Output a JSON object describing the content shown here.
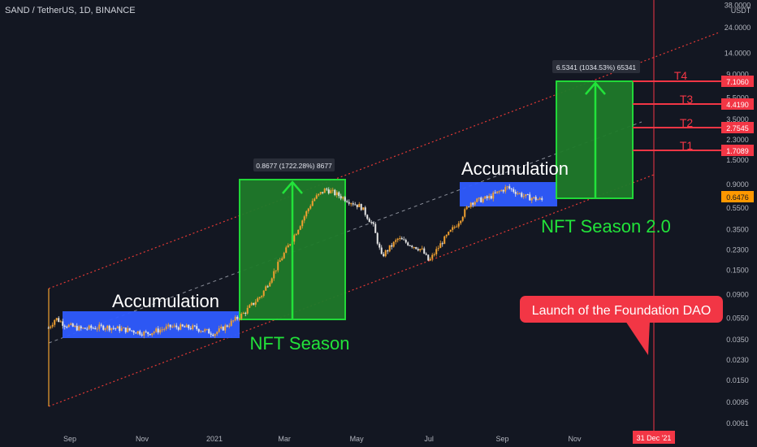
{
  "header": {
    "symbol": "SAND / TetherUS, 1D, BINANCE"
  },
  "colors": {
    "background": "#131722",
    "up": "#f0a030",
    "down": "#e6e6e6",
    "channel": "#e53935",
    "box_green": "#1f7a2a",
    "box_green_border": "#22e33a",
    "box_blue": "#2e5bff",
    "label_red": "#f23645",
    "current_price": "#ff9800",
    "event_line": "#f23645"
  },
  "chart_data": {
    "type": "candlestick",
    "scale": "log",
    "currency_label": "USDT",
    "y_ticks": [
      "38.0000",
      "24.0000",
      "14.0000",
      "9.0000",
      "5.5000",
      "3.5000",
      "2.3000",
      "1.5000",
      "0.9000",
      "0.5500",
      "0.3500",
      "0.2300",
      "0.1500",
      "0.0900",
      "0.0550",
      "0.0350",
      "0.0230",
      "0.0150",
      "0.0095",
      "0.0061"
    ],
    "x_ticks": [
      "Sep",
      "Nov",
      "2021",
      "Mar",
      "May",
      "Jul",
      "Sep",
      "Nov"
    ],
    "event_date_label": "31 Dec '21",
    "current_price": "0.6476",
    "price_path": [
      [
        "2020-08-14",
        0.045
      ],
      [
        "2020-08-20",
        0.055
      ],
      [
        "2020-08-28",
        0.048
      ],
      [
        "2020-09-10",
        0.044
      ],
      [
        "2020-10-01",
        0.046
      ],
      [
        "2020-10-20",
        0.043
      ],
      [
        "2020-11-05",
        0.04
      ],
      [
        "2020-11-25",
        0.046
      ],
      [
        "2020-12-15",
        0.045
      ],
      [
        "2021-01-01",
        0.04
      ],
      [
        "2021-01-10",
        0.046
      ],
      [
        "2021-01-25",
        0.06
      ],
      [
        "2021-02-10",
        0.09
      ],
      [
        "2021-02-25",
        0.18
      ],
      [
        "2021-03-10",
        0.32
      ],
      [
        "2021-03-25",
        0.65
      ],
      [
        "2021-04-05",
        0.82
      ],
      [
        "2021-04-20",
        0.68
      ],
      [
        "2021-05-05",
        0.56
      ],
      [
        "2021-05-15",
        0.38
      ],
      [
        "2021-05-22",
        0.2
      ],
      [
        "2021-06-05",
        0.29
      ],
      [
        "2021-06-25",
        0.23
      ],
      [
        "2021-07-01",
        0.18
      ],
      [
        "2021-07-12",
        0.27
      ],
      [
        "2021-07-25",
        0.4
      ],
      [
        "2021-08-05",
        0.62
      ],
      [
        "2021-08-20",
        0.68
      ],
      [
        "2021-09-05",
        0.85
      ],
      [
        "2021-09-20",
        0.7
      ],
      [
        "2021-10-05",
        0.6476
      ]
    ],
    "annotations": [
      {
        "text": "Accumulation",
        "color": "#ffffff"
      },
      {
        "text": "NFT Season",
        "color": "#22e33a"
      },
      {
        "text": "Accumulation",
        "color": "#ffffff"
      },
      {
        "text": "NFT Season 2.0",
        "color": "#22e33a"
      },
      {
        "text": "Launch of the Foundation DAO",
        "color": "#ffffff"
      }
    ],
    "measure_labels": [
      "0.8677 (1722.28%) 8677",
      "6.5341 (1034.53%) 65341"
    ],
    "targets": [
      {
        "name": "T1",
        "value": "1.7089"
      },
      {
        "name": "T2",
        "value": "2.7545"
      },
      {
        "name": "T3",
        "value": "4.4190"
      },
      {
        "name": "T4",
        "value": "7.1060"
      }
    ]
  }
}
